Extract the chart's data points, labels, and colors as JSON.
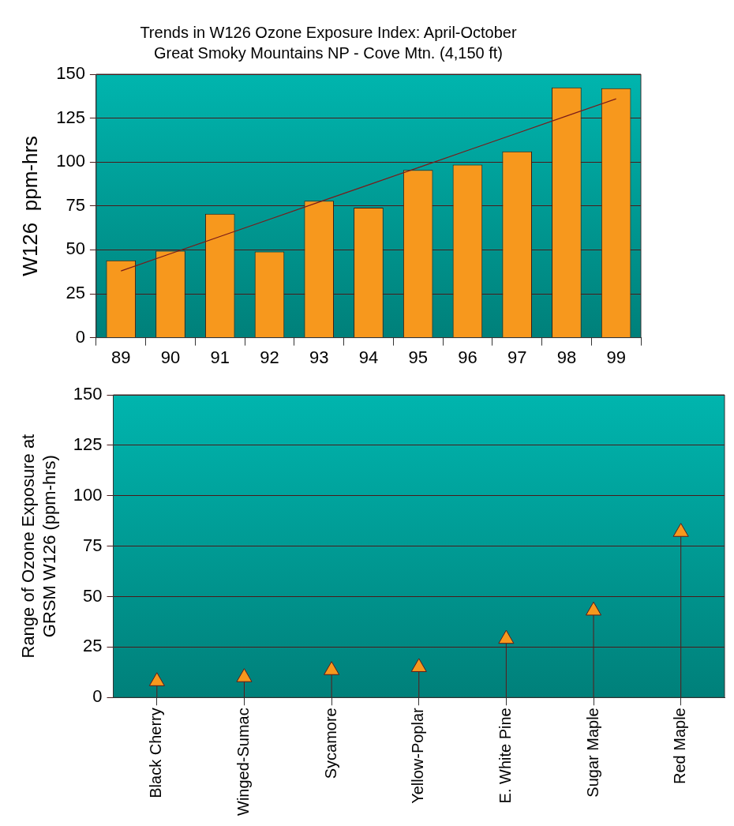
{
  "chart_data": [
    {
      "type": "bar",
      "title": "Trends in W126 Ozone Exposure Index: April-October",
      "subtitle": "Great Smoky Mountains NP - Cove Mtn. (4,150 ft)",
      "ylabel": "W126  ppm-hrs",
      "categories": [
        "89",
        "90",
        "91",
        "92",
        "93",
        "94",
        "95",
        "96",
        "97",
        "98",
        "99"
      ],
      "series": [
        {
          "color": "#f7981d",
          "values": [
            44,
            49.5,
            70.5,
            49,
            78,
            74,
            95.5,
            98.5,
            106,
            142.5,
            142
          ]
        },
        {
          "type": "line",
          "color": "#7a1a1a",
          "values": [
            38,
            47.8,
            57.6,
            67.4,
            77.2,
            87,
            96.8,
            106.6,
            116.4,
            126.2,
            136
          ]
        }
      ],
      "ylim": [
        0,
        150
      ],
      "yticks": [
        0,
        25,
        50,
        75,
        100,
        125,
        150
      ],
      "grid": "y"
    },
    {
      "type": "lollipop",
      "ylabel": "Range of Ozone Exposure at\nGRSM W126 (ppm-hrs)",
      "categories": [
        "Black Cherry",
        "Winged-Sumac",
        "Sycamore",
        "Yellow-Poplar",
        "E. White Pine",
        "Sugar Maple",
        "Red Maple"
      ],
      "values": [
        8,
        10,
        13.5,
        15,
        29,
        43,
        82
      ],
      "color": "#f7981d",
      "marker": "triangle",
      "ylim": [
        0,
        150
      ],
      "yticks": [
        0,
        25,
        50,
        75,
        100,
        125,
        150
      ],
      "grid": "y"
    }
  ]
}
